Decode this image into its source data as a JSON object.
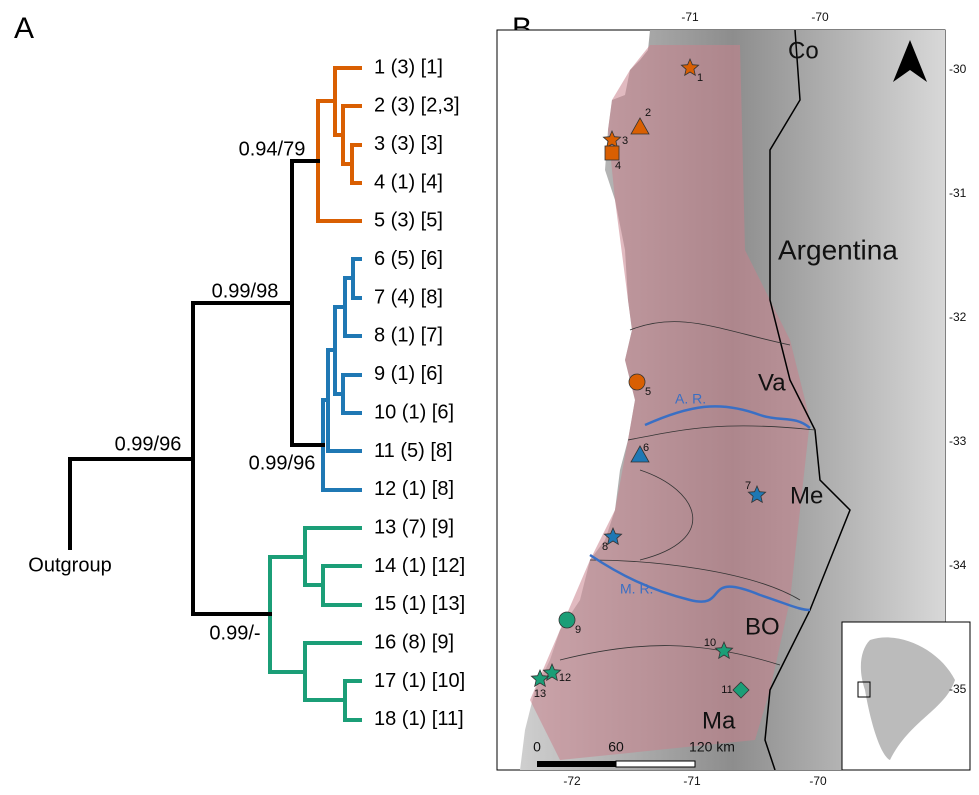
{
  "panel_a": {
    "label": "A",
    "tips": [
      "1 (3) [1]",
      "2 (3) [2,3]",
      "3 (3) [3]",
      "4 (1) [4]",
      "5 (3) [5]",
      "6 (5) [6]",
      "7 (4) [8]",
      "8 (1) [7]",
      "9 (1) [6]",
      "10 (1) [6]",
      "11 (5) [8]",
      "12 (1) [8]",
      "13 (7) [9]",
      "14 (1) [12]",
      "15 (1) [13]",
      "16 (8) [9]",
      "17 (1) [10]",
      "18 (1) [11]"
    ],
    "supports": [
      "0.94/79",
      "0.99/98",
      "0.99/96",
      "0.99/96",
      "0.99/-"
    ],
    "outgroup": "Outgroup"
  },
  "panel_b": {
    "label": "B",
    "regions": [
      "Co",
      "Argentina",
      "Va",
      "Me",
      "BO",
      "Ma"
    ],
    "rivers": [
      "A. R.",
      "M. R."
    ],
    "sites": [
      "1",
      "2",
      "3",
      "4",
      "5",
      "6",
      "7",
      "8",
      "9",
      "10",
      "11",
      "12",
      "13"
    ],
    "lon_top": [
      "-71",
      "-70"
    ],
    "lon_bottom": [
      "-72",
      "-71",
      "-70"
    ],
    "lat": [
      "-30",
      "-31",
      "-32",
      "-33",
      "-34",
      "-35"
    ],
    "scale": [
      "0",
      "60",
      "120 km"
    ]
  }
}
